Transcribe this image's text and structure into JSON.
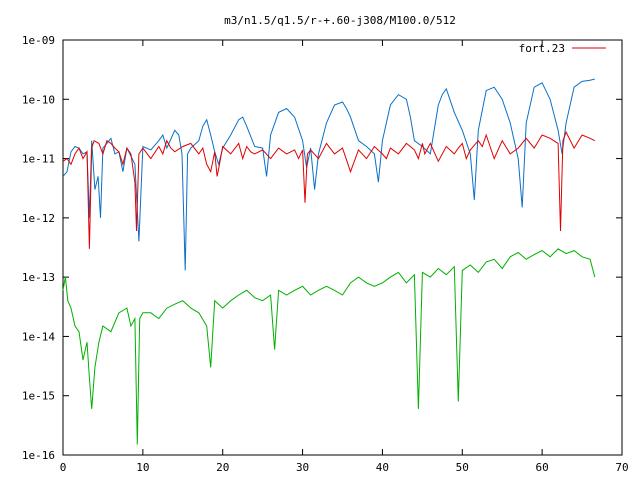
{
  "chart_data": {
    "type": "line",
    "title": "m3/n1.5/q1.5/r-+.60-j308/M100.0/512",
    "xlabel": "",
    "ylabel": "",
    "xlim": [
      0,
      70
    ],
    "ylim": [
      1e-16,
      1e-09
    ],
    "yscale": "log",
    "grid": false,
    "legend_position": "top-right",
    "x_ticks": [
      0,
      10,
      20,
      30,
      40,
      50,
      60,
      70
    ],
    "x_tick_labels": [
      "0",
      "10",
      "20",
      "30",
      "40",
      "50",
      "60",
      "70"
    ],
    "y_ticks": [
      1e-16,
      1e-15,
      1e-14,
      1e-13,
      1e-12,
      1e-11,
      1e-10,
      1e-09
    ],
    "y_tick_labels": [
      "1e-16",
      "1e-15",
      "1e-14",
      "1e-13",
      "1e-12",
      "1e-11",
      "1e-10",
      "1e-09"
    ],
    "series": [
      {
        "name": "fort.23",
        "color": "#e00000",
        "x": [
          0,
          0.5,
          1,
          1.5,
          2,
          2.5,
          3,
          3.3,
          3.6,
          3.9,
          4.5,
          5,
          5.5,
          6,
          6.5,
          7,
          7.5,
          8,
          8.5,
          9,
          9.2,
          9.5,
          10,
          11,
          12,
          12.5,
          13,
          13.5,
          14,
          15,
          16,
          17,
          17.5,
          18,
          18.5,
          19,
          19.3,
          19.6,
          20,
          21,
          22,
          22.5,
          23,
          23.5,
          24,
          25,
          26,
          27,
          28,
          29,
          29.5,
          30,
          30.3,
          30.6,
          31,
          32,
          33,
          34,
          35,
          36,
          37,
          38,
          39,
          40,
          40.5,
          41,
          42,
          43,
          44,
          44.5,
          45,
          45.3,
          46,
          47,
          48,
          49,
          49.5,
          50,
          50.5,
          51,
          52,
          52.5,
          53,
          54,
          55,
          56,
          57,
          58,
          59,
          60,
          61,
          62,
          62.3,
          62.6,
          63,
          64,
          65,
          66,
          66.6
        ],
        "y": [
          9e-12,
          1e-11,
          8e-12,
          1.2e-11,
          1.5e-11,
          1e-11,
          1.3e-11,
          3e-13,
          1.5e-11,
          2e-11,
          1.8e-11,
          1.2e-11,
          2e-11,
          1.8e-11,
          1.5e-11,
          1.3e-11,
          8e-12,
          1.5e-11,
          1.2e-11,
          4e-12,
          6e-13,
          1.2e-11,
          1.5e-11,
          1e-11,
          1.6e-11,
          1.2e-11,
          2e-11,
          1.5e-11,
          1.3e-11,
          1.6e-11,
          1.8e-11,
          1.2e-11,
          1.5e-11,
          8e-12,
          6e-12,
          1.3e-11,
          5e-12,
          8e-12,
          1.6e-11,
          1.2e-11,
          1.8e-11,
          1e-11,
          1.6e-11,
          1.3e-11,
          1.2e-11,
          1.4e-11,
          1e-11,
          1.5e-11,
          1.2e-11,
          1.4e-11,
          1e-11,
          1.4e-11,
          1.8e-12,
          1.2e-11,
          1.4e-11,
          1e-11,
          1.8e-11,
          1.2e-11,
          1.5e-11,
          6e-12,
          1.4e-11,
          1e-11,
          1.6e-11,
          1.2e-11,
          1e-11,
          1.5e-11,
          1.2e-11,
          1.8e-11,
          1.4e-11,
          1e-11,
          1.8e-11,
          1.2e-11,
          1.8e-11,
          9e-12,
          1.6e-11,
          1.2e-11,
          1.5e-11,
          1.8e-11,
          1e-11,
          1.4e-11,
          2e-11,
          1.6e-11,
          2.5e-11,
          1e-11,
          2e-11,
          1.2e-11,
          1.5e-11,
          2.2e-11,
          1.5e-11,
          2.5e-11,
          2.2e-11,
          1.8e-11,
          6e-13,
          2e-11,
          2.8e-11,
          1.5e-11,
          2.5e-11,
          2.2e-11,
          2e-11
        ]
      },
      {
        "name": "",
        "color": "#0a70c8",
        "x": [
          0,
          0.5,
          1,
          1.5,
          2,
          2.5,
          3,
          3.3,
          3.6,
          4,
          4.4,
          4.7,
          5,
          5.5,
          6,
          6.5,
          7,
          7.5,
          8,
          9,
          9.5,
          10,
          11,
          12,
          12.5,
          13,
          14,
          14.5,
          14.9,
          15.3,
          15.6,
          16,
          17,
          17.5,
          18,
          18.5,
          19,
          19.5,
          20,
          21,
          22,
          22.5,
          23,
          24,
          25,
          25.5,
          26,
          27,
          28,
          29,
          30,
          30.5,
          31,
          31.5,
          32,
          33,
          34,
          35,
          35.5,
          36,
          37,
          38,
          39,
          39.5,
          40,
          41,
          42,
          43,
          43.5,
          44,
          45,
          46,
          47,
          47.5,
          48,
          49,
          50,
          51,
          51.5,
          52,
          53,
          54,
          55,
          56,
          57,
          57.5,
          58,
          59,
          60,
          61,
          62,
          62.5,
          63,
          64,
          65,
          66,
          66.6
        ],
        "y": [
          5e-12,
          6e-12,
          1.3e-11,
          1.6e-11,
          1.5e-11,
          1.2e-11,
          1.3e-11,
          1e-12,
          2e-11,
          3e-12,
          5e-12,
          1e-12,
          1.5e-11,
          1.8e-11,
          2.2e-11,
          1.2e-11,
          1.3e-11,
          6e-12,
          1.5e-11,
          8e-12,
          4e-13,
          1.6e-11,
          1.4e-11,
          2e-11,
          2.5e-11,
          1.5e-11,
          3e-11,
          2.5e-11,
          1.2e-11,
          1.3e-13,
          1.2e-11,
          1.5e-11,
          2e-11,
          3.5e-11,
          4.5e-11,
          2.5e-11,
          1.3e-11,
          8e-12,
          1.5e-11,
          2.5e-11,
          4.5e-11,
          5e-11,
          3.5e-11,
          1.6e-11,
          1.5e-11,
          5e-12,
          2.5e-11,
          6e-11,
          7e-11,
          5e-11,
          2e-11,
          7e-12,
          1.5e-11,
          3e-12,
          1.2e-11,
          4e-11,
          8e-11,
          9e-11,
          7e-11,
          5e-11,
          2e-11,
          1.6e-11,
          1.2e-11,
          4e-12,
          2e-11,
          8e-11,
          1.2e-10,
          1e-10,
          5e-11,
          2e-11,
          1.6e-11,
          1.2e-11,
          8e-11,
          1.2e-10,
          1.5e-10,
          6e-11,
          3e-11,
          1.2e-11,
          2e-12,
          3e-11,
          1.4e-10,
          1.6e-10,
          1e-10,
          4e-11,
          1e-11,
          1.5e-12,
          4e-11,
          1.6e-10,
          1.9e-10,
          1e-10,
          3e-11,
          1.2e-11,
          4e-11,
          1.6e-10,
          2e-10,
          2.1e-10,
          2.2e-10
        ]
      },
      {
        "name": "",
        "color": "#00b000",
        "x": [
          0,
          0.3,
          0.6,
          1,
          1.5,
          2,
          2.5,
          3,
          3.3,
          3.6,
          4,
          4.5,
          5,
          6,
          7,
          8,
          8.5,
          9,
          9.3,
          9.6,
          10,
          11,
          12,
          13,
          14,
          15,
          16,
          17,
          18,
          18.5,
          19,
          20,
          21,
          22,
          23,
          24,
          25,
          26,
          26.5,
          27,
          28,
          29,
          30,
          31,
          32,
          33,
          34,
          35,
          36,
          37,
          38,
          39,
          40,
          41,
          42,
          43,
          44,
          44.5,
          45,
          46,
          47,
          48,
          49,
          49.5,
          50,
          51,
          52,
          53,
          54,
          55,
          56,
          57,
          58,
          59,
          60,
          61,
          62,
          63,
          64,
          65,
          66,
          66.6
        ],
        "y": [
          6e-14,
          1e-13,
          4e-14,
          3e-14,
          1.5e-14,
          1.2e-14,
          4e-15,
          8e-15,
          2e-15,
          6e-16,
          3e-15,
          8e-15,
          1.5e-14,
          1.2e-14,
          2.5e-14,
          3e-14,
          1.5e-14,
          2e-14,
          1.5e-16,
          2e-14,
          2.5e-14,
          2.5e-14,
          2e-14,
          3e-14,
          3.5e-14,
          4e-14,
          3e-14,
          2.5e-14,
          1.5e-14,
          3e-15,
          4e-14,
          3e-14,
          4e-14,
          5e-14,
          6e-14,
          4.5e-14,
          4e-14,
          5e-14,
          6e-15,
          6e-14,
          5e-14,
          6e-14,
          7e-14,
          5e-14,
          6e-14,
          7e-14,
          6e-14,
          5e-14,
          8e-14,
          1e-13,
          8e-14,
          7e-14,
          8e-14,
          1e-13,
          1.2e-13,
          8e-14,
          1.1e-13,
          6e-16,
          1.2e-13,
          1e-13,
          1.4e-13,
          1.1e-13,
          1.5e-13,
          8e-16,
          1.3e-13,
          1.6e-13,
          1.2e-13,
          1.8e-13,
          2e-13,
          1.4e-13,
          2.2e-13,
          2.6e-13,
          2e-13,
          2.4e-13,
          2.8e-13,
          2.2e-13,
          3e-13,
          2.5e-13,
          2.8e-13,
          2.2e-13,
          2e-13,
          1e-13
        ]
      }
    ]
  }
}
